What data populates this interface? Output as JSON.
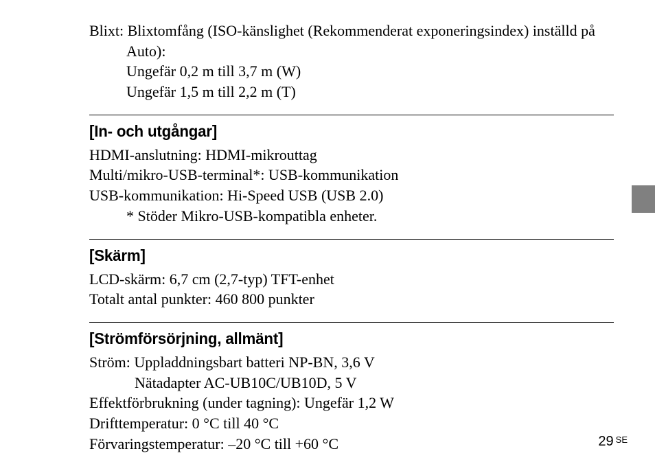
{
  "doc": {
    "top": {
      "line1": "Blixt: Blixtomfång (ISO-känslighet (Rekommenderat exponeringsindex) inställd på Auto):",
      "line2": "Ungefär 0,2 m till 3,7 m (W)",
      "line3": "Ungefär 1,5 m till 2,2 m (T)"
    },
    "sections": [
      {
        "heading": "[In- och utgångar]",
        "lines": [
          "HDMI-anslutning: HDMI-mikrouttag",
          "Multi/mikro-USB-terminal*: USB-kommunikation",
          "USB-kommunikation: Hi-Speed USB (USB 2.0)"
        ],
        "footnote": "* Stöder Mikro-USB-kompatibla enheter."
      },
      {
        "heading": "[Skärm]",
        "lines": [
          "LCD-skärm: 6,7 cm (2,7-typ) TFT-enhet",
          "Totalt antal punkter: 460 800 punkter"
        ]
      },
      {
        "heading": "[Strömförsörjning, allmänt]",
        "lines": [
          "Ström: Uppladdningsbart batteri NP-BN, 3,6 V",
          "            Nätadapter AC-UB10C/UB10D, 5 V",
          "Effektförbrukning (under tagning): Ungefär 1,2 W",
          "Drifttemperatur: 0 °C till 40 °C",
          "Förvaringstemperatur: –20 °C till +60 °C"
        ]
      }
    ],
    "page_number": "29",
    "lang_code": "SE",
    "separator_color": "#000000",
    "tab_color": "#808080"
  }
}
